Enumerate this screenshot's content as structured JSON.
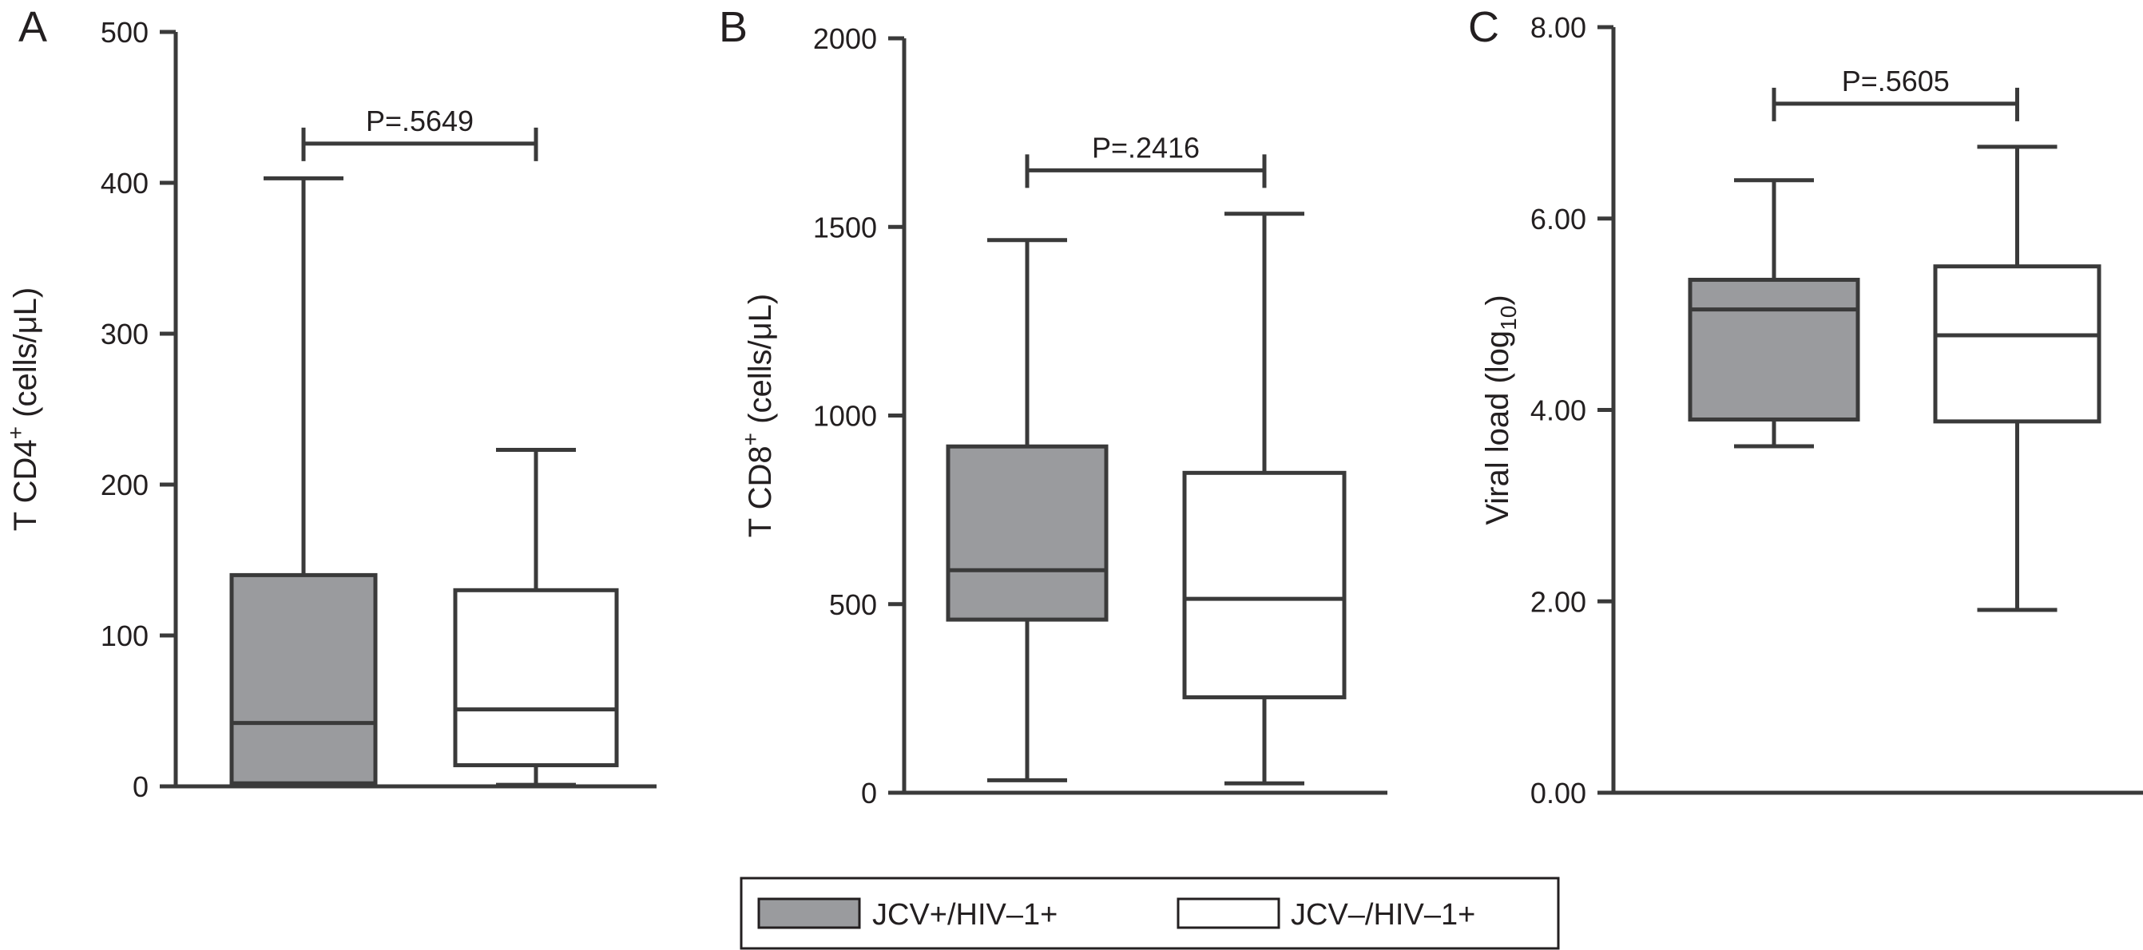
{
  "colors": {
    "ink": "#3a3a3a",
    "text": "#231f20",
    "group1_fill": "#9a9b9e",
    "group2_fill": "#ffffff"
  },
  "legend": {
    "items": [
      {
        "label": "JCV+/HIV–1+",
        "fill": "#9a9b9e"
      },
      {
        "label": "JCV–/HIV–1+",
        "fill": "#ffffff"
      }
    ]
  },
  "chart_data": [
    {
      "type": "box",
      "panel_label": "A",
      "ylabel_main": "T CD4",
      "ylabel_sup": "+",
      "ylabel_tail": " (cells/μL)",
      "ylim": [
        0,
        500
      ],
      "yticks": [
        0,
        100,
        200,
        300,
        400,
        500
      ],
      "ytick_labels": [
        "0",
        "100",
        "200",
        "300",
        "400",
        "500"
      ],
      "groups": [
        {
          "name": "JCV+/HIV–1+",
          "min": 2,
          "q1": 2,
          "median": 42,
          "q3": 140,
          "max": 403
        },
        {
          "name": "JCV–/HIV–1+",
          "min": 1,
          "q1": 14,
          "median": 51,
          "q3": 130,
          "max": 223
        }
      ],
      "pvalue_label": "P=.5649",
      "pvalue_y": 426
    },
    {
      "type": "box",
      "panel_label": "B",
      "ylabel_main": "T CD8",
      "ylabel_sup": "+",
      "ylabel_tail": " (cells/μL)",
      "ylim": [
        0,
        2000
      ],
      "yticks": [
        0,
        500,
        1000,
        1500,
        2000
      ],
      "ytick_labels": [
        "0",
        "500",
        "1000",
        "1500",
        "2000"
      ],
      "groups": [
        {
          "name": "JCV+/HIV–1+",
          "min": 33,
          "q1": 459,
          "median": 590,
          "q3": 918,
          "max": 1465
        },
        {
          "name": "JCV–/HIV–1+",
          "min": 25,
          "q1": 253,
          "median": 514,
          "q3": 848,
          "max": 1535
        }
      ],
      "pvalue_label": "P=.2416",
      "pvalue_y": 1650
    },
    {
      "type": "box",
      "panel_label": "C",
      "ylabel_main": "Viral load (log",
      "ylabel_sub": "10",
      "ylabel_tail": ")",
      "ylim": [
        0,
        8
      ],
      "yticks": [
        0,
        2,
        4,
        6,
        8
      ],
      "ytick_labels": [
        "0.00",
        "2.00",
        "4.00",
        "6.00",
        "8.00"
      ],
      "groups": [
        {
          "name": "JCV+/HIV–1+",
          "min": 3.62,
          "q1": 3.9,
          "median": 5.05,
          "q3": 5.36,
          "max": 6.4
        },
        {
          "name": "JCV–/HIV–1+",
          "min": 1.91,
          "q1": 3.88,
          "median": 4.78,
          "q3": 5.5,
          "max": 6.75
        }
      ],
      "pvalue_label": "P=.5605",
      "pvalue_y": 7.2
    }
  ]
}
